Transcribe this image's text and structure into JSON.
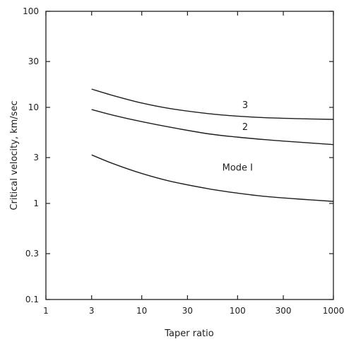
{
  "chart_data": {
    "type": "line",
    "xscale": "log",
    "yscale": "log",
    "xlim": [
      1,
      1000
    ],
    "ylim": [
      0.1,
      100
    ],
    "x_ticks": [
      {
        "value": 1,
        "label": "1"
      },
      {
        "value": 3,
        "label": "3"
      },
      {
        "value": 10,
        "label": "10"
      },
      {
        "value": 30,
        "label": "30"
      },
      {
        "value": 100,
        "label": "100"
      },
      {
        "value": 300,
        "label": "300"
      },
      {
        "value": 1000,
        "label": "1000"
      }
    ],
    "y_ticks": [
      {
        "value": 0.1,
        "label": "0.1"
      },
      {
        "value": 0.3,
        "label": "0.3"
      },
      {
        "value": 1,
        "label": "1"
      },
      {
        "value": 3,
        "label": "3"
      },
      {
        "value": 10,
        "label": "10"
      },
      {
        "value": 30,
        "label": "30"
      },
      {
        "value": 100,
        "label": "100"
      }
    ],
    "xlabel": "Taper ratio",
    "ylabel": "Critical velocity,   km/sec",
    "grid": false,
    "series": [
      {
        "name": "Mode 1",
        "x": [
          3,
          5,
          10,
          20,
          50,
          100,
          200,
          500,
          1000
        ],
        "y": [
          3.2,
          2.6,
          2.05,
          1.7,
          1.42,
          1.28,
          1.18,
          1.1,
          1.05
        ]
      },
      {
        "name": "2",
        "x": [
          3,
          5,
          10,
          20,
          50,
          100,
          200,
          500,
          1000
        ],
        "y": [
          9.5,
          8.3,
          7.1,
          6.2,
          5.3,
          4.9,
          4.6,
          4.3,
          4.1
        ]
      },
      {
        "name": "3",
        "x": [
          3,
          5,
          10,
          20,
          50,
          100,
          200,
          500,
          1000
        ],
        "y": [
          15.5,
          13.3,
          11.1,
          9.7,
          8.6,
          8.1,
          7.8,
          7.6,
          7.5
        ]
      }
    ],
    "curve_labels": [
      {
        "text": "3",
        "x": 120,
        "y": 9.8
      },
      {
        "text": "2",
        "x": 120,
        "y": 5.8
      },
      {
        "text": "Mode I",
        "x": 100,
        "y": 2.2
      }
    ]
  }
}
